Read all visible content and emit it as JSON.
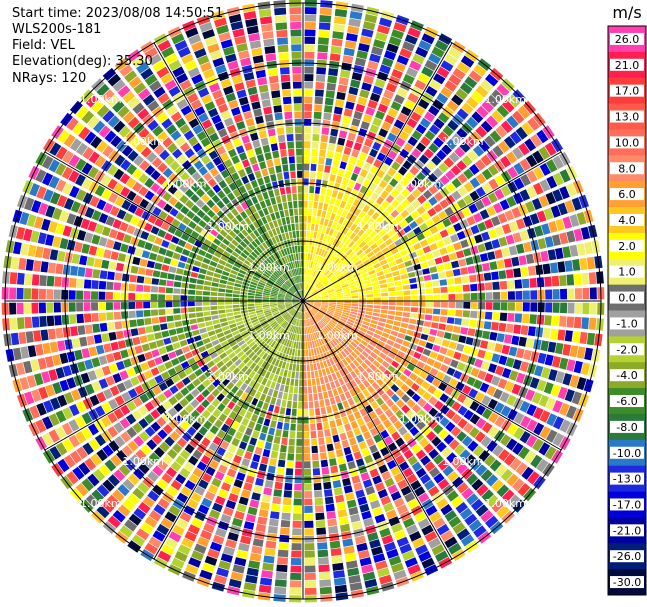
{
  "header": {
    "start_time": "Start time: 2023/08/08 14:50:51",
    "instrument": "WLS200s-181",
    "field": "Field: VEL",
    "elevation": "Elevation(deg): 35.30",
    "nrays": "NRays: 120"
  },
  "colorbar": {
    "unit": "m/s",
    "ticks": [
      "26.0",
      "21.0",
      "17.0",
      "13.0",
      "10.0",
      "8.0",
      "6.0",
      "4.0",
      "2.0",
      "1.0",
      "0.0",
      "-1.0",
      "-2.0",
      "-4.0",
      "-6.0",
      "-8.0",
      "-10.0",
      "-13.0",
      "-17.0",
      "-21.0",
      "-26.0",
      "-30.0"
    ],
    "colors": [
      "#ff3fb0",
      "#ff2050",
      "#ff3c3c",
      "#ff5a4a",
      "#ff6e5a",
      "#ff8a6a",
      "#ffa030",
      "#ffc820",
      "#ffff00",
      "#f0f070",
      "#6e6e6e",
      "#a0a0a0",
      "#b4d232",
      "#8caa28",
      "#3c8c28",
      "#2a7a3a",
      "#2a78c8",
      "#1e2ae0",
      "#0000dc",
      "#0000a0",
      "#001e78",
      "#000a3c"
    ]
  },
  "chart_data": {
    "type": "ppi",
    "field": "VEL",
    "unit": "m/s",
    "nrays": 120,
    "elevation_deg": 35.3,
    "range_ring_labels": [
      "1.00km",
      "2.00km",
      "3.00km",
      "4.00km",
      "5.00km"
    ],
    "sectors": [
      {
        "az_from": 0,
        "az_to": 90,
        "pattern": "positive",
        "value_ms": 3.0
      },
      {
        "az_from": 90,
        "az_to": 180,
        "pattern": "positive",
        "value_ms": 7.0
      },
      {
        "az_from": 180,
        "az_to": 270,
        "pattern": "negative",
        "value_ms": -3.0
      },
      {
        "az_from": 270,
        "az_to": 360,
        "pattern": "negative",
        "value_ms": -5.0
      }
    ]
  }
}
